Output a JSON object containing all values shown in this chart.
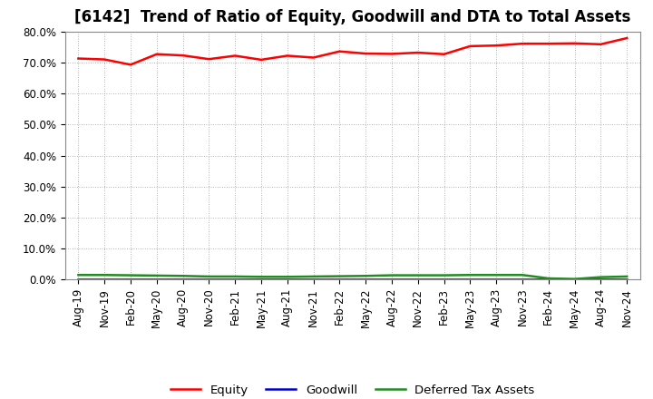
{
  "title": "[6142]  Trend of Ratio of Equity, Goodwill and DTA to Total Assets",
  "x_labels": [
    "Aug-19",
    "Nov-19",
    "Feb-20",
    "May-20",
    "Aug-20",
    "Nov-20",
    "Feb-21",
    "May-21",
    "Aug-21",
    "Nov-21",
    "Feb-22",
    "May-22",
    "Aug-22",
    "Nov-22",
    "Feb-23",
    "May-23",
    "Aug-23",
    "Nov-23",
    "Feb-24",
    "May-24",
    "Aug-24",
    "Nov-24"
  ],
  "equity": [
    0.714,
    0.711,
    0.694,
    0.728,
    0.724,
    0.712,
    0.723,
    0.71,
    0.723,
    0.717,
    0.737,
    0.73,
    0.729,
    0.733,
    0.728,
    0.754,
    0.756,
    0.762,
    0.762,
    0.763,
    0.76,
    0.78
  ],
  "goodwill": [
    0.0,
    0.0,
    0.0,
    0.0,
    0.0,
    0.0,
    0.0,
    0.0,
    0.0,
    0.0,
    0.0,
    0.0,
    0.0,
    0.0,
    0.0,
    0.0,
    0.0,
    0.0,
    0.0,
    0.0,
    0.0,
    0.0
  ],
  "dta": [
    0.014,
    0.014,
    0.013,
    0.012,
    0.011,
    0.009,
    0.009,
    0.008,
    0.008,
    0.009,
    0.01,
    0.011,
    0.013,
    0.013,
    0.013,
    0.014,
    0.014,
    0.014,
    0.003,
    0.001,
    0.007,
    0.009
  ],
  "equity_color": "#ff0000",
  "goodwill_color": "#0000cd",
  "dta_color": "#228b22",
  "background_color": "#ffffff",
  "plot_bg_color": "#ffffff",
  "ylim": [
    0.0,
    0.8
  ],
  "yticks": [
    0.0,
    0.1,
    0.2,
    0.3,
    0.4,
    0.5,
    0.6,
    0.7,
    0.8
  ],
  "legend_labels": [
    "Equity",
    "Goodwill",
    "Deferred Tax Assets"
  ],
  "title_fontsize": 12,
  "tick_fontsize": 8.5,
  "legend_fontsize": 9.5
}
